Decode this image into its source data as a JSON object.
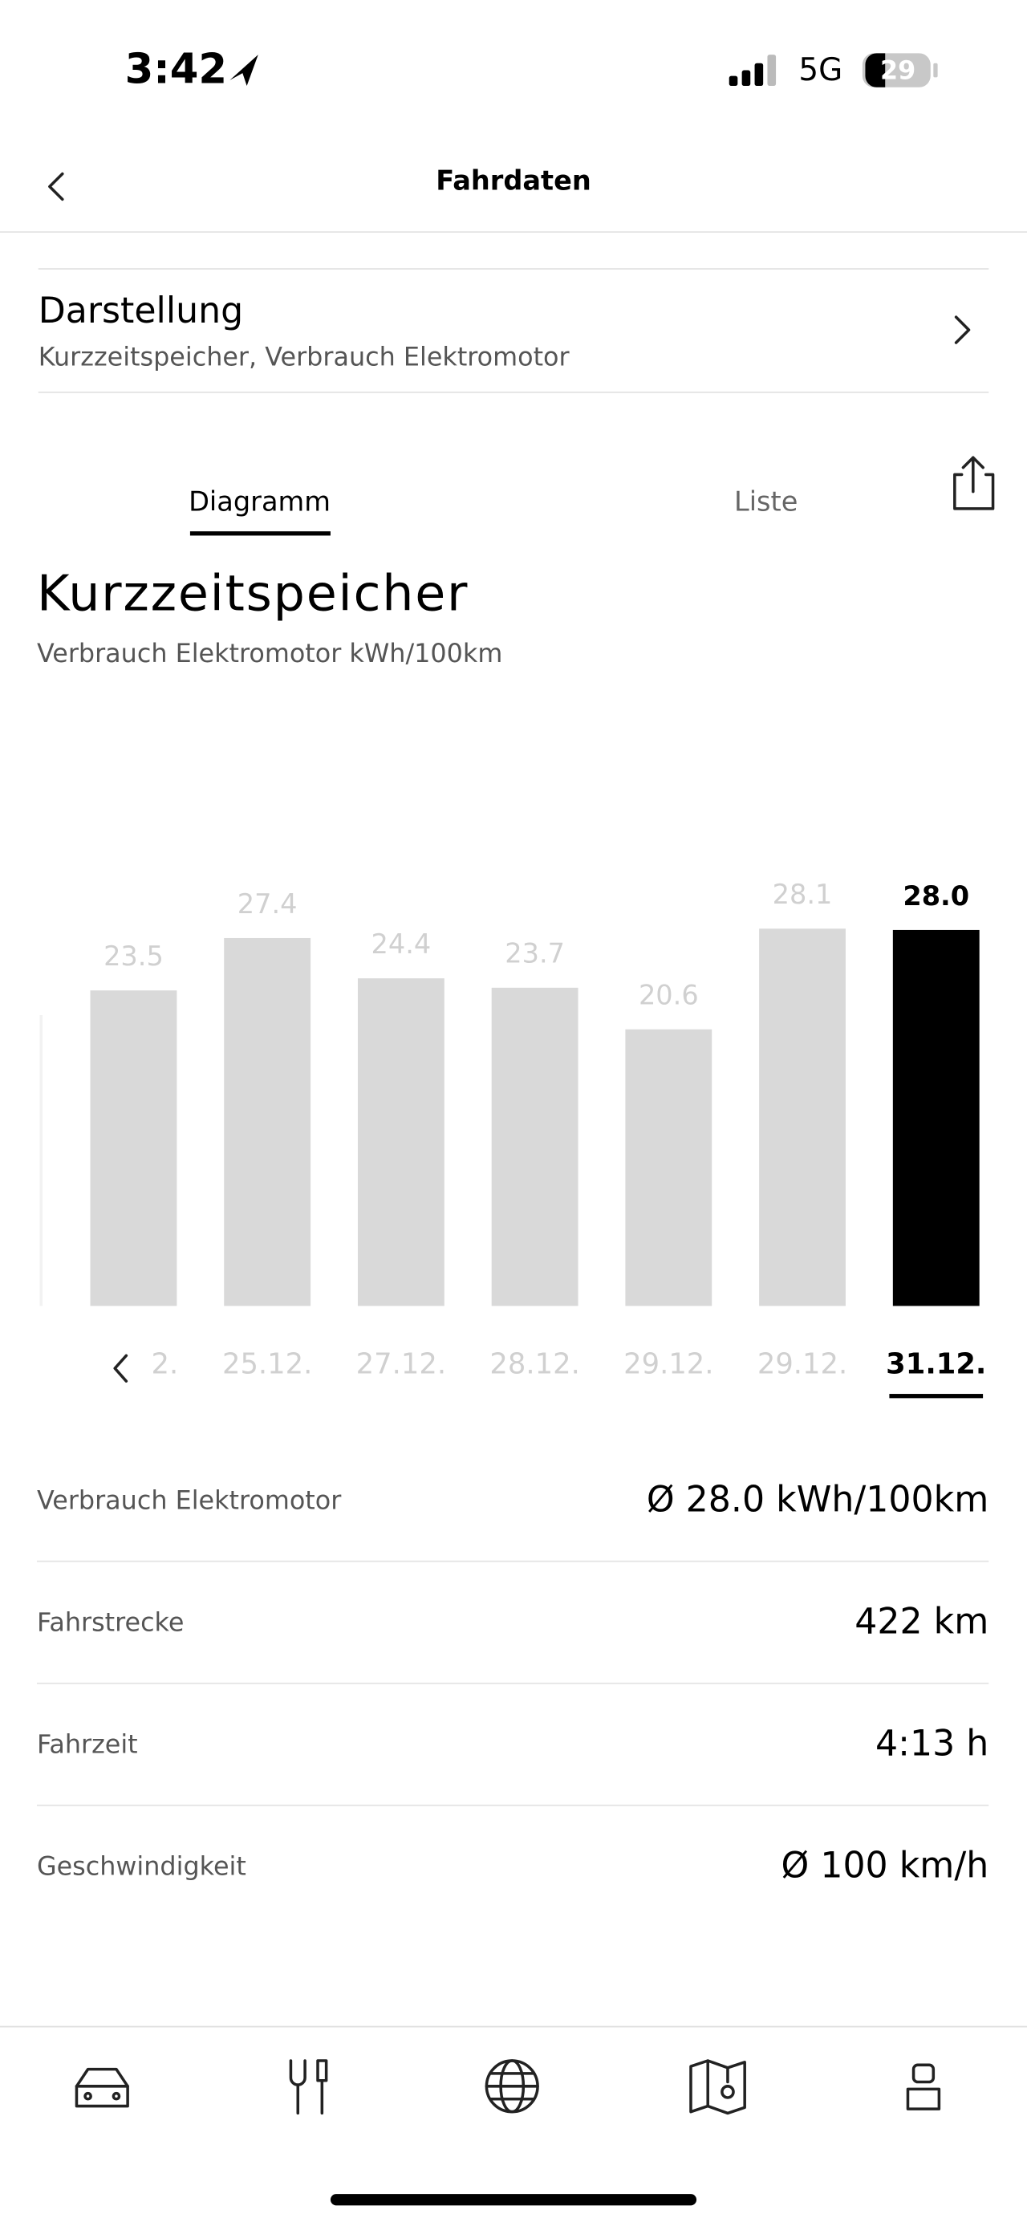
{
  "status_bar": {
    "time": "3:42",
    "network": "5G",
    "battery": "29"
  },
  "header": {
    "title": "Fahrdaten"
  },
  "settings": {
    "title": "Darstellung",
    "subtitle": "Kurzzeitspeicher, Verbrauch Elektromotor"
  },
  "tabs": [
    "Diagramm",
    "Liste"
  ],
  "chart_data": {
    "type": "bar",
    "title": "Kurzzeitspeicher",
    "subtitle": "Verbrauch Elektromotor kWh/100km",
    "categories": [
      "2.",
      "25.12.",
      "27.12.",
      "28.12.",
      "29.12.",
      "29.12.",
      "31.12."
    ],
    "values": [
      23.5,
      27.4,
      24.4,
      23.7,
      20.6,
      28.1,
      28.0
    ],
    "value_labels": [
      "23.5",
      "27.4",
      "24.4",
      "23.7",
      "20.6",
      "28.1",
      "28.0"
    ],
    "colors": [
      "#d9d9d9",
      "#d9d9d9",
      "#d9d9d9",
      "#d9d9d9",
      "#d9d9d9",
      "#d9d9d9",
      "#000000"
    ],
    "ylim": [
      0,
      28
    ]
  },
  "stats": [
    {
      "label": "Verbrauch Elektromotor",
      "value": "Ø 28.0 kWh/100km"
    },
    {
      "label": "Fahrstrecke",
      "value": "422 km"
    },
    {
      "label": "Fahrzeit",
      "value": "4:13 h"
    },
    {
      "label": "Geschwindigkeit",
      "value": "Ø 100 km/h"
    }
  ]
}
